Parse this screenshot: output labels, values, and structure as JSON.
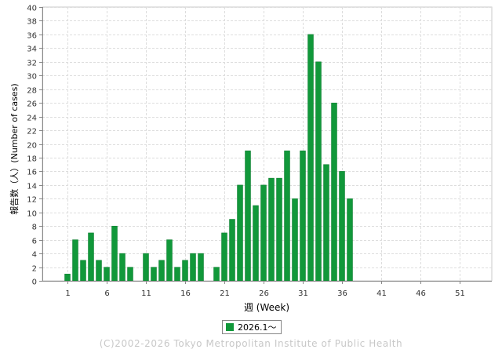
{
  "colors": {
    "bar": "#11983a",
    "bar_edge": "#0b7a2d",
    "grid": "#dddddd",
    "axis": "#888888"
  },
  "chart_data": {
    "type": "bar",
    "xlabel": "週 (Week)",
    "ylabel": "報告数（人）(Number of cases)",
    "ylim": [
      0,
      40
    ],
    "yticks": [
      0,
      2,
      4,
      6,
      8,
      10,
      12,
      14,
      16,
      18,
      20,
      22,
      24,
      26,
      28,
      30,
      32,
      34,
      36,
      38,
      40
    ],
    "xlim": [
      1,
      53
    ],
    "xticks": [
      1,
      6,
      11,
      16,
      21,
      26,
      31,
      36,
      41,
      46,
      51
    ],
    "grid": true,
    "legend_position": "bottom",
    "series": [
      {
        "name": "2026.1〜",
        "color": "#11983a",
        "x": [
          1,
          2,
          3,
          4,
          5,
          6,
          7,
          8,
          9,
          10,
          11,
          12,
          13,
          14,
          15,
          16,
          17,
          18,
          19,
          20,
          21,
          22,
          23,
          24,
          25,
          26,
          27,
          28,
          29,
          30,
          31,
          32,
          33,
          34,
          35,
          36,
          37
        ],
        "values": [
          1,
          6,
          3,
          7,
          3,
          2,
          8,
          4,
          2,
          0,
          4,
          2,
          3,
          6,
          2,
          3,
          4,
          4,
          0,
          2,
          7,
          9,
          14,
          19,
          11,
          14,
          15,
          15,
          19,
          12,
          19,
          36,
          32,
          17,
          26,
          16,
          12
        ]
      }
    ]
  },
  "legend": {
    "label": "2026.1〜"
  },
  "copyright": "(C)2002-2026 Tokyo Metropolitan Institute of Public Health"
}
